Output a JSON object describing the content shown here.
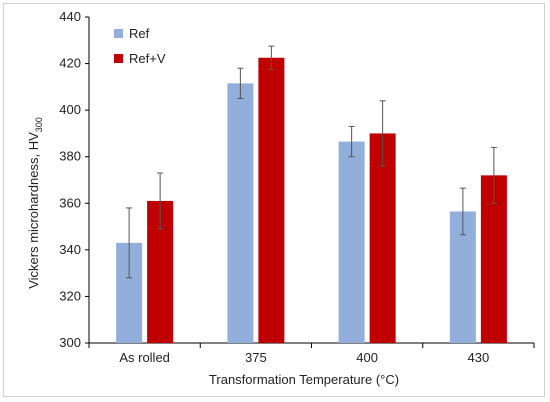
{
  "chart_data": {
    "type": "bar",
    "title": "",
    "xlabel": "Transformation Temperature (°C)",
    "ylabel": "Vickers microhardness, HV",
    "ylabel_subscript": "300",
    "categories": [
      "As rolled",
      "375",
      "400",
      "430"
    ],
    "ylim": [
      300,
      440
    ],
    "yticks": [
      300,
      320,
      340,
      360,
      380,
      400,
      420,
      440
    ],
    "grid": false,
    "legend_position": "top-left",
    "series": [
      {
        "name": "Ref",
        "color": "#92afdc",
        "values": [
          343,
          411.5,
          386.5,
          356.5
        ],
        "errors": [
          15,
          6.5,
          6.5,
          10
        ]
      },
      {
        "name": "Ref+V",
        "color": "#c00000",
        "values": [
          361,
          422.5,
          390,
          372
        ],
        "errors": [
          12,
          5,
          14,
          12
        ]
      }
    ]
  }
}
